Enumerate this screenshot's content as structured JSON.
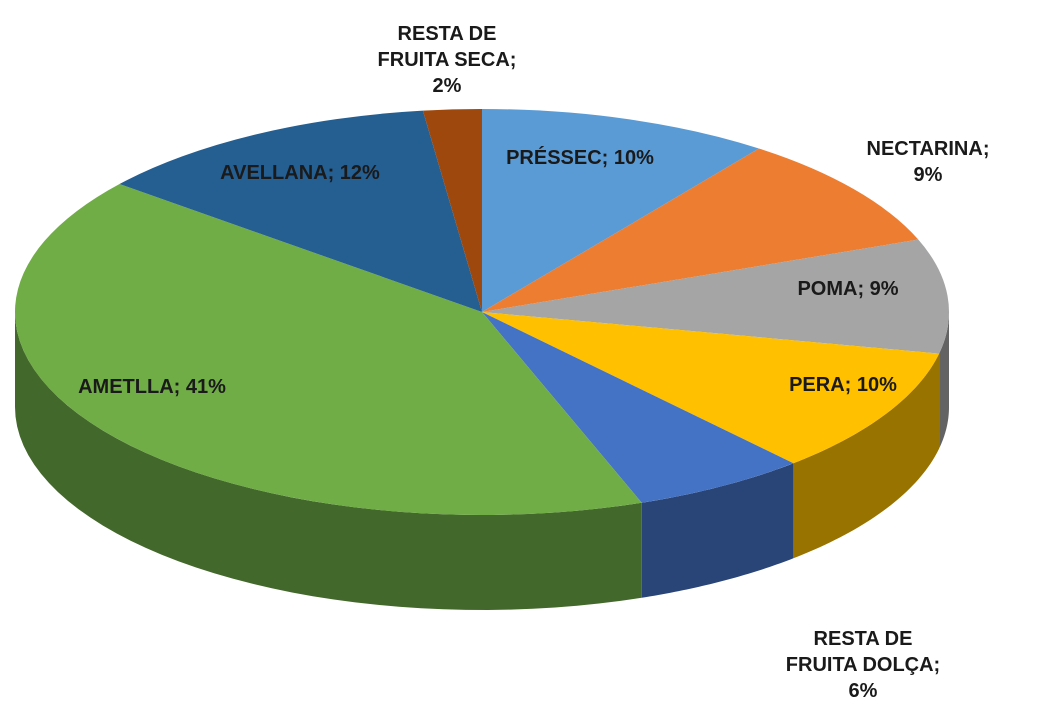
{
  "chart_data": {
    "type": "pie",
    "values": [
      10,
      9,
      9,
      10,
      6,
      41,
      12,
      2
    ],
    "value_labels": [
      "PRÉSSEC; 10%",
      "NECTARINA;  9%",
      "POMA; 9%",
      "PERA; 10%",
      "RESTA DE\nFRUITA DOLÇA;\n6%",
      "AMETLLA; 41%",
      "AVELLANA; 12%",
      "RESTA DE\nFRUITA SECA;\n2%"
    ],
    "colors": [
      "#5b9bd5",
      "#ed7d31",
      "#a5a5a5",
      "#ffc000",
      "#4472c4",
      "#70ad47",
      "#255e91",
      "#9e480e"
    ]
  }
}
